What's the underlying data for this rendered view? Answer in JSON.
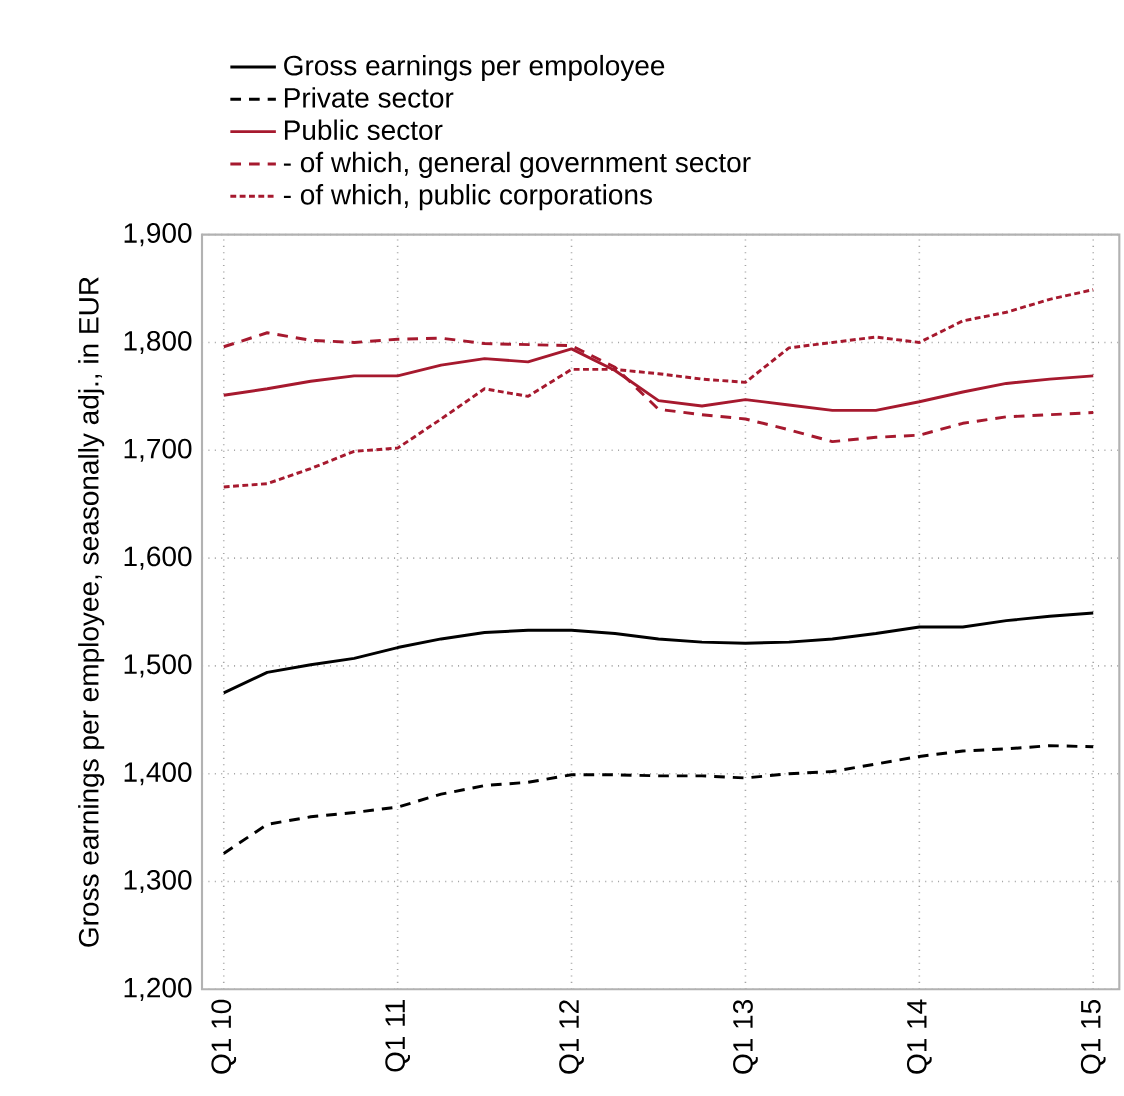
{
  "chart_data": {
    "type": "line",
    "ylabel": "Gross earnings per employee, seasonally adj., in EUR",
    "categories": [
      "Q1 10",
      null,
      null,
      null,
      "Q1 11",
      null,
      null,
      null,
      "Q1 12",
      null,
      null,
      null,
      "Q1 13",
      null,
      null,
      null,
      "Q1 14",
      null,
      null,
      null,
      "Q1 15"
    ],
    "series": [
      {
        "name": "Gross earnings per empoloyee",
        "color": "#000000",
        "line_style": "solid",
        "values": [
          1475,
          1494,
          1501,
          1507,
          1517,
          1525,
          1531,
          1533,
          1533,
          1530,
          1525,
          1522,
          1521,
          1522,
          1525,
          1530,
          1536,
          1536,
          1542,
          1546,
          1549
        ]
      },
      {
        "name": "Private sector",
        "color": "#000000",
        "line_style": "dashed",
        "values": [
          1326,
          1353,
          1360,
          1364,
          1369,
          1381,
          1389,
          1392,
          1399,
          1399,
          1398,
          1398,
          1396,
          1400,
          1402,
          1409,
          1416,
          1421,
          1423,
          1426,
          1425
        ]
      },
      {
        "name": "Public sector",
        "color": "#a6192e",
        "line_style": "solid",
        "values": [
          1751,
          1757,
          1764,
          1769,
          1769,
          1779,
          1785,
          1782,
          1794,
          1774,
          1746,
          1741,
          1747,
          1742,
          1737,
          1737,
          1745,
          1754,
          1762,
          1766,
          1769
        ]
      },
      {
        "name": "- of which, general government sector",
        "color": "#a6192e",
        "line_style": "dashed",
        "values": [
          1796,
          1809,
          1802,
          1800,
          1803,
          1804,
          1799,
          1798,
          1797,
          1777,
          1738,
          1733,
          1729,
          1719,
          1708,
          1712,
          1714,
          1725,
          1731,
          1733,
          1735
        ]
      },
      {
        "name": "- of which, public corporations",
        "color": "#a6192e",
        "line_style": "dotted",
        "values": [
          1666,
          1669,
          1683,
          1699,
          1702,
          1729,
          1757,
          1750,
          1775,
          1775,
          1771,
          1766,
          1763,
          1795,
          1800,
          1805,
          1800,
          1820,
          1828,
          1840,
          1849
        ]
      }
    ],
    "ylim": [
      1200,
      1900
    ],
    "yticks": [
      {
        "value": 1200,
        "label": "1,200"
      },
      {
        "value": 1300,
        "label": "1,300"
      },
      {
        "value": 1400,
        "label": "1,400"
      },
      {
        "value": 1500,
        "label": "1,500"
      },
      {
        "value": 1600,
        "label": "1,600"
      },
      {
        "value": 1700,
        "label": "1,700"
      },
      {
        "value": 1800,
        "label": "1,800"
      },
      {
        "value": 1900,
        "label": "1,900"
      }
    ],
    "grid": true,
    "legend": "top"
  }
}
